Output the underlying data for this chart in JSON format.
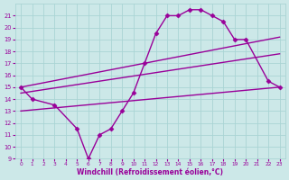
{
  "xlabel": "Windchill (Refroidissement éolien,°C)",
  "xlim": [
    -0.5,
    23.5
  ],
  "ylim": [
    9,
    22
  ],
  "xticks": [
    0,
    1,
    2,
    3,
    4,
    5,
    6,
    7,
    8,
    9,
    10,
    11,
    12,
    13,
    14,
    15,
    16,
    17,
    18,
    19,
    20,
    21,
    22,
    23
  ],
  "yticks": [
    9,
    10,
    11,
    12,
    13,
    14,
    15,
    16,
    17,
    18,
    19,
    20,
    21
  ],
  "bg_color": "#cce8e8",
  "grid_color": "#aad4d4",
  "line_color": "#990099",
  "line_width": 1.0,
  "marker": "D",
  "marker_size": 2.5,
  "curve": {
    "x": [
      0,
      1,
      3,
      5,
      6,
      7,
      8,
      9,
      10,
      11,
      12,
      13,
      14,
      15,
      16,
      17,
      18,
      19,
      20,
      22,
      23
    ],
    "y": [
      15,
      14,
      13.5,
      11.5,
      9,
      11,
      11.5,
      13,
      14.5,
      17,
      19.5,
      21,
      21,
      21.5,
      21.5,
      21,
      20.5,
      19,
      19,
      15.5,
      15
    ]
  },
  "straight_lines": [
    {
      "x": [
        0,
        23
      ],
      "y": [
        15.0,
        19.2
      ]
    },
    {
      "x": [
        0,
        23
      ],
      "y": [
        14.5,
        17.8
      ]
    },
    {
      "x": [
        0,
        23
      ],
      "y": [
        13.0,
        15.0
      ]
    }
  ]
}
